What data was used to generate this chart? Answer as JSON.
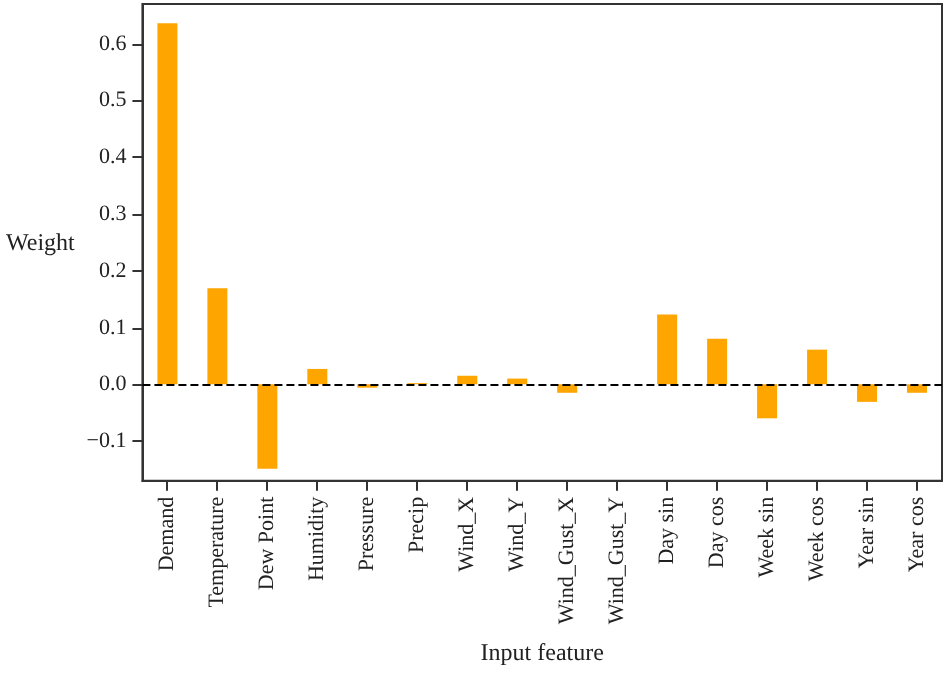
{
  "chart_data": {
    "type": "bar",
    "xlabel": "Input feature",
    "ylabel": "Weight",
    "categories": [
      "Demand",
      "Temperature",
      "Dew Point",
      "Humidity",
      "Pressure",
      "Precip",
      "Wind_X",
      "Wind_Y",
      "Wind_Gust_X",
      "Wind_Gust_Y",
      "Day sin",
      "Day cos",
      "Week sin",
      "Week cos",
      "Year sin",
      "Year cos"
    ],
    "values": [
      0.636,
      0.169,
      -0.149,
      0.027,
      -0.006,
      0.002,
      0.015,
      0.01,
      -0.015,
      null,
      0.123,
      0.08,
      -0.06,
      0.061,
      -0.031,
      -0.015
    ],
    "color": "#ffa500",
    "ylim": [
      -0.17,
      0.67
    ],
    "yticks": [
      {
        "value": -0.1,
        "label": "−0.1"
      },
      {
        "value": 0,
        "label": "0.0"
      },
      0.1,
      0.2,
      0.3,
      0.4,
      0.5,
      0.6
    ],
    "grid": false,
    "ref_lines": [
      {
        "axis": "y",
        "value": 0,
        "color": "#000000",
        "line_style": "dashed"
      }
    ]
  }
}
